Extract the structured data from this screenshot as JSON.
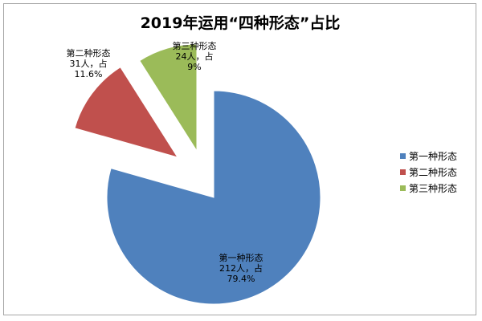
{
  "chart_data": {
    "type": "pie",
    "title": "2019年运用“四种形态”占比",
    "legend_position": "right",
    "slices": [
      {
        "name": "第一种形态",
        "value": 212,
        "percent": 79.4,
        "color": "#4f81bd",
        "label_lines": [
          "第一种形态",
          "212人，占",
          "79.4%"
        ]
      },
      {
        "name": "第二种形态",
        "value": 31,
        "percent": 11.6,
        "color": "#c0504d",
        "label_lines": [
          "第二种形态",
          "31人，占",
          "11.6%"
        ]
      },
      {
        "name": "第三种形态",
        "value": 24,
        "percent": 9,
        "color": "#9bbb59",
        "label_lines": [
          "第三种形态",
          "24人，占",
          "9%"
        ]
      }
    ]
  }
}
